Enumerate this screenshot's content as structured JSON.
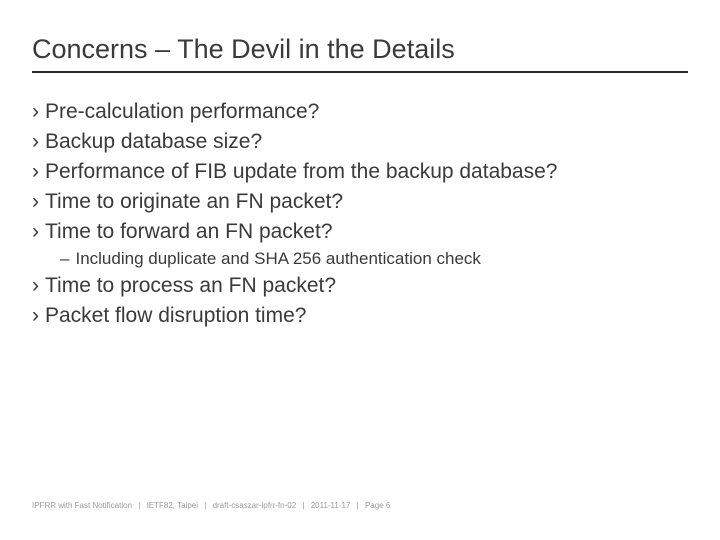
{
  "title": "Concerns – The Devil in the Details",
  "bullet_marker": "›",
  "sub_marker": "–",
  "bullets": {
    "b0": "Pre-calculation performance?",
    "b1": "Backup database size?",
    "b2": "Performance of FIB update from the backup database?",
    "b3": "Time to originate an FN packet?",
    "b4": "Time to forward an FN packet?",
    "b5": "Time to process an FN packet?",
    "b6": "Packet flow disruption time?"
  },
  "sub": {
    "s0": "Including duplicate and SHA 256 authentication check"
  },
  "footer": {
    "f0": "IPFRR with Fast Notification",
    "f1": "IETF82, Taipei",
    "f2": "draft-csaszar-ipfrr-fn-02",
    "f3": "2011-11-17",
    "f4": "Page  6",
    "sep": "|"
  },
  "colors": {
    "text": "#3a3a3a",
    "rule": "#2a2a2a",
    "footer": "#9a9a9a",
    "background": "#ffffff"
  },
  "typography": {
    "title_fontsize": 27,
    "bullet_fontsize": 21,
    "sub_fontsize": 17,
    "footer_fontsize": 8
  }
}
